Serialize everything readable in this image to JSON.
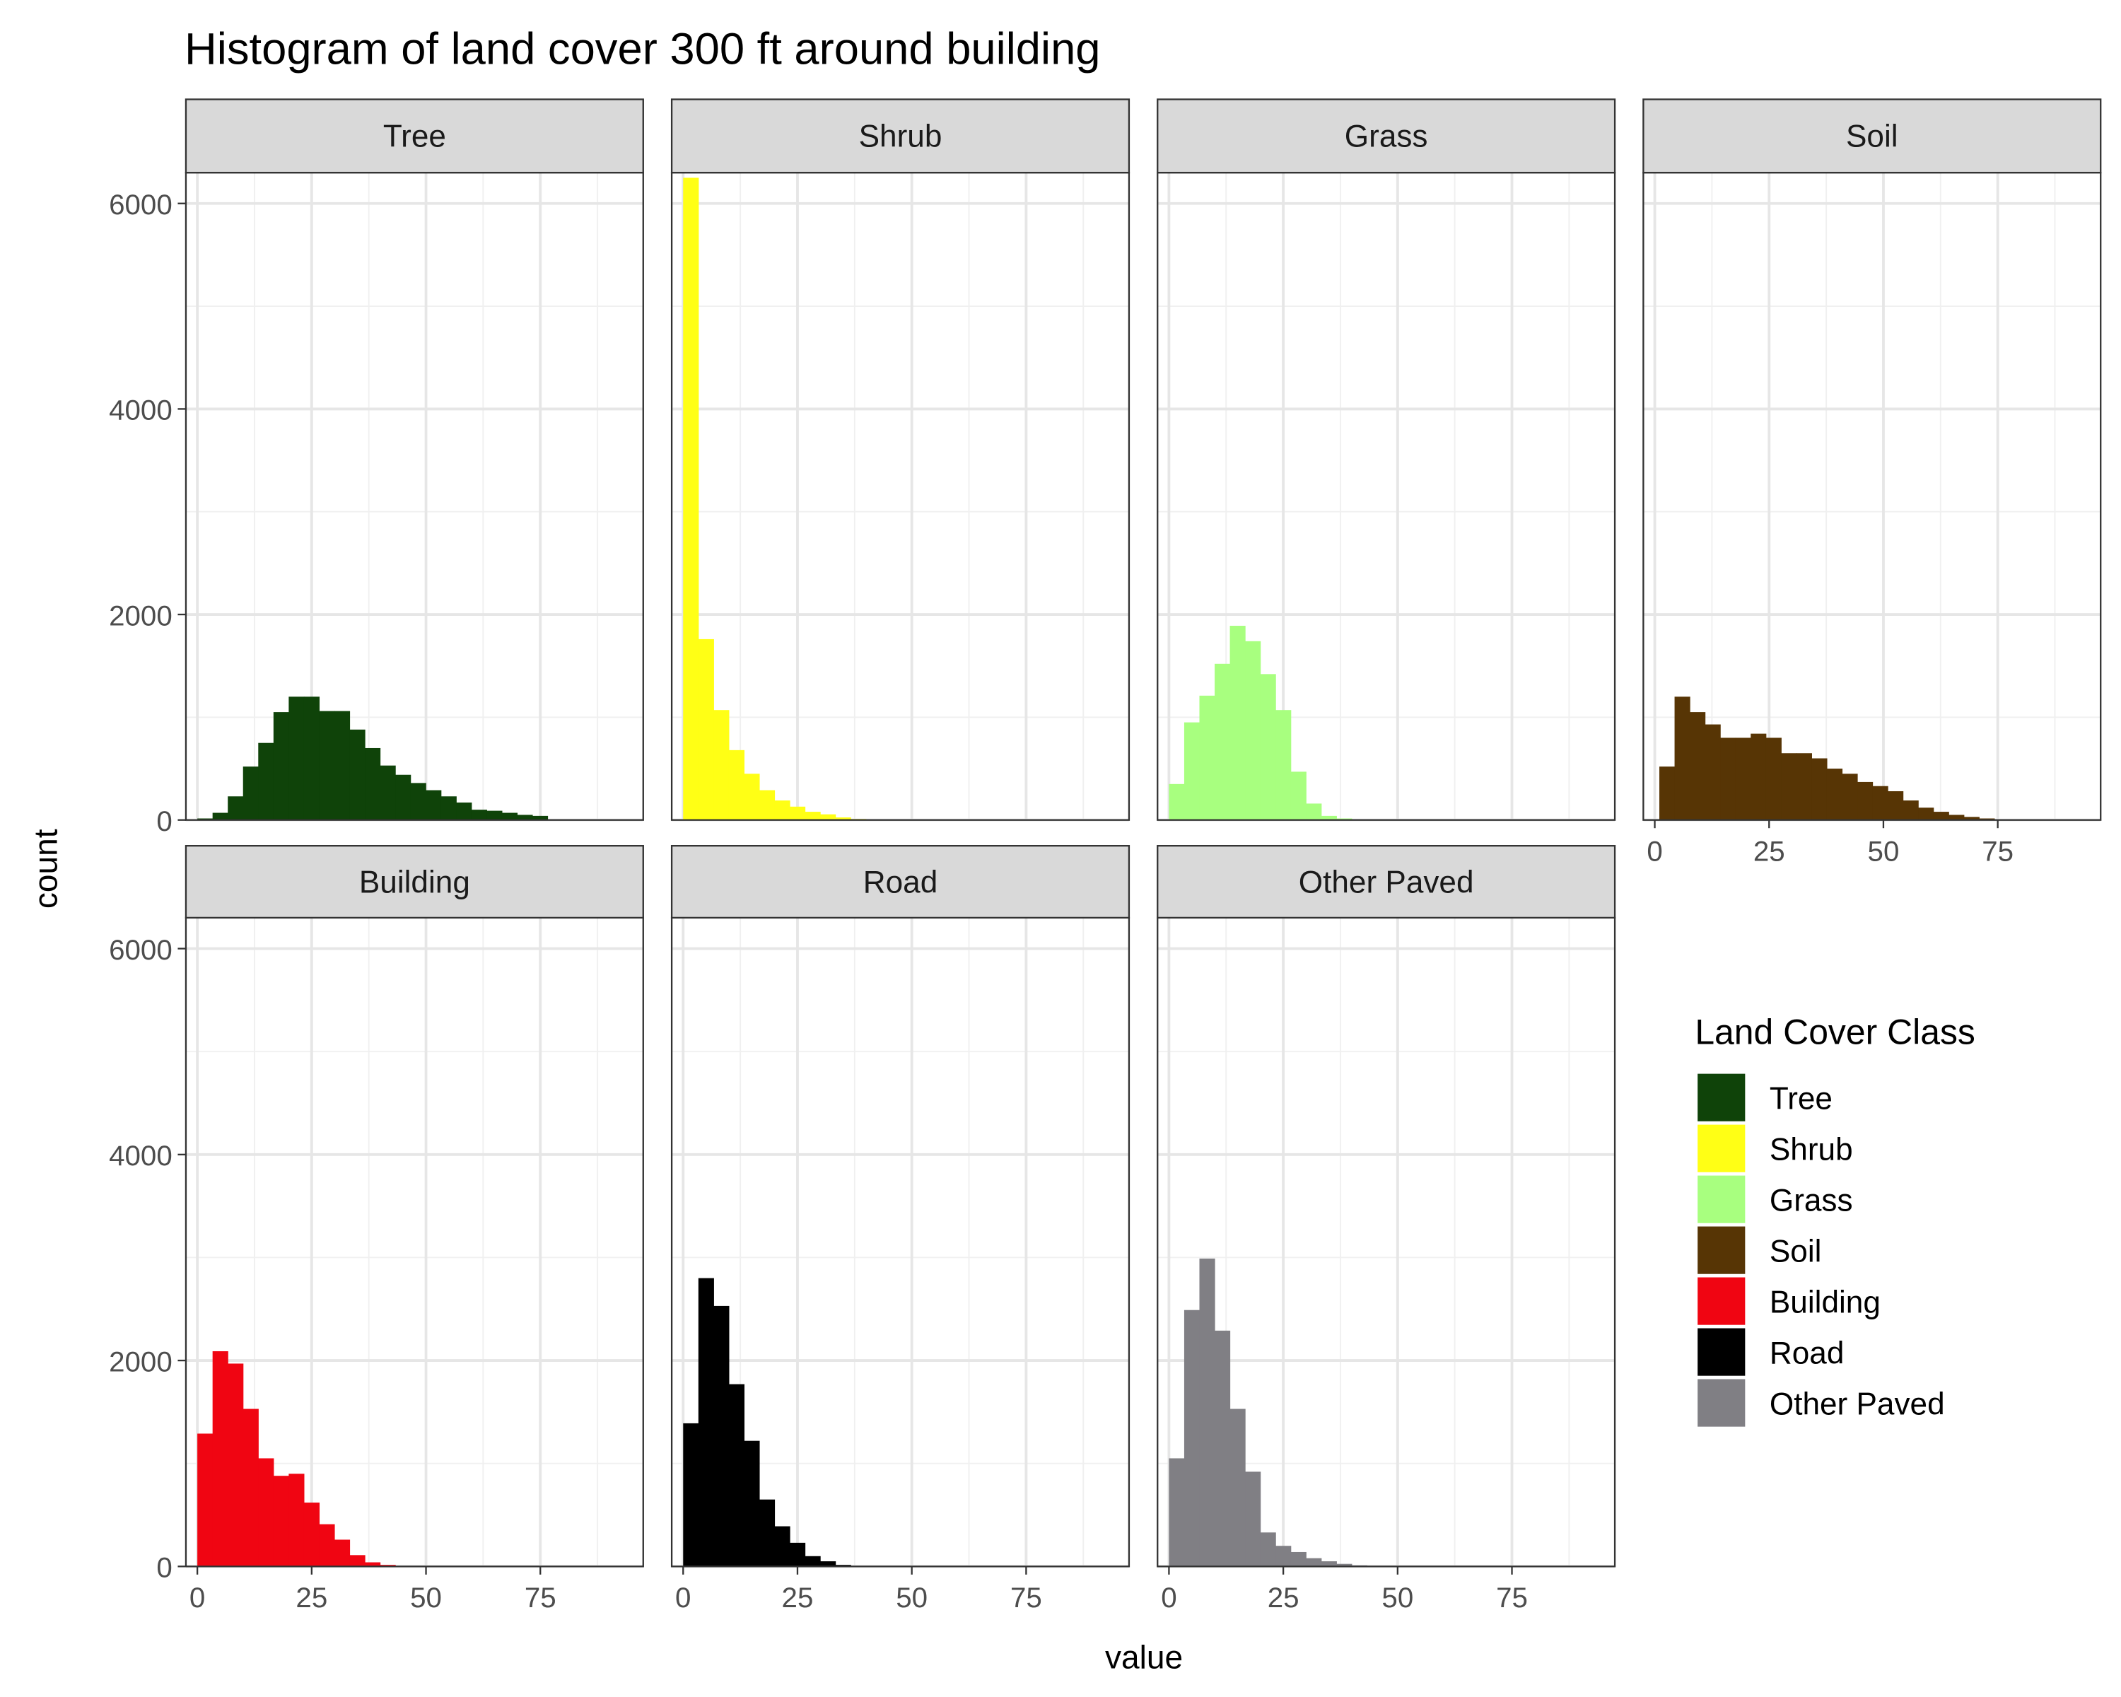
{
  "chart_data": {
    "type": "bar",
    "title": "Histogram of land cover 300 ft around building",
    "xlabel": "value",
    "ylabel": "count",
    "xlim": [
      -2.5,
      97.5
    ],
    "ylim": [
      0,
      6300
    ],
    "xticks": [
      0,
      25,
      50,
      75
    ],
    "yticks": [
      0,
      2000,
      4000,
      6000
    ],
    "bin_width": 3.33,
    "grid": true,
    "legend": {
      "title": "Land Cover Class",
      "placement": "right",
      "entries": [
        "Tree",
        "Shrub",
        "Grass",
        "Soil",
        "Building",
        "Road",
        "Other Paved"
      ]
    },
    "series": [
      {
        "name": "Tree",
        "color": "#0f4309",
        "bin_start": 0,
        "values": [
          15,
          70,
          230,
          520,
          750,
          1050,
          1200,
          1200,
          1060,
          1060,
          880,
          700,
          530,
          440,
          360,
          290,
          230,
          170,
          100,
          90,
          70,
          50,
          40
        ]
      },
      {
        "name": "Shrub",
        "color": "#ffff15",
        "bin_start": 0,
        "values": [
          6250,
          1760,
          1070,
          680,
          450,
          290,
          190,
          130,
          80,
          55,
          25,
          10
        ]
      },
      {
        "name": "Grass",
        "color": "#a8ff7f",
        "bin_start": 0,
        "values": [
          350,
          950,
          1210,
          1520,
          1890,
          1740,
          1420,
          1070,
          470,
          160,
          40,
          15,
          5
        ]
      },
      {
        "name": "Soil",
        "color": "#573505",
        "bin_start": 1,
        "values": [
          520,
          1200,
          1050,
          930,
          800,
          800,
          840,
          800,
          650,
          650,
          600,
          500,
          450,
          370,
          330,
          280,
          190,
          120,
          80,
          50,
          30,
          15
        ]
      },
      {
        "name": "Building",
        "color": "#f00512",
        "bin_start": 0,
        "values": [
          1290,
          2090,
          1970,
          1530,
          1050,
          880,
          900,
          620,
          410,
          260,
          110,
          40,
          15
        ]
      },
      {
        "name": "Road",
        "color": "#000000",
        "bin_start": 0,
        "values": [
          1390,
          2800,
          2530,
          1770,
          1220,
          650,
          390,
          230,
          100,
          50,
          15
        ]
      },
      {
        "name": "Other Paved",
        "color": "#807f84",
        "bin_start": 0,
        "values": [
          1050,
          2490,
          2990,
          2290,
          1530,
          920,
          330,
          200,
          140,
          80,
          50,
          25,
          10,
          5
        ]
      }
    ]
  }
}
